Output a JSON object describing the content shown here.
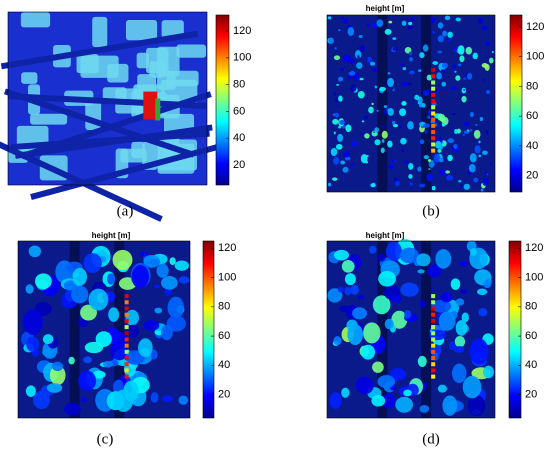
{
  "panels": [
    {
      "label": "(a)",
      "colorbar": {
        "lim": [
          5,
          132
        ],
        "ticks": [
          20,
          40,
          60,
          80,
          100,
          120
        ]
      }
    },
    {
      "label": "(b)",
      "title": "height [m]",
      "colorbar": {
        "lim": [
          9,
          128
        ],
        "ticks": [
          20,
          40,
          60,
          80,
          100,
          120
        ]
      }
    },
    {
      "label": "(c)",
      "title": "height [m]",
      "colorbar": {
        "lim": [
          4,
          125
        ],
        "ticks": [
          20,
          40,
          60,
          80,
          100,
          120
        ]
      }
    },
    {
      "label": "(d)",
      "title": "height [m]",
      "colorbar": {
        "lim": [
          4,
          125
        ],
        "ticks": [
          20,
          40,
          60,
          80,
          100,
          120
        ]
      }
    }
  ]
}
